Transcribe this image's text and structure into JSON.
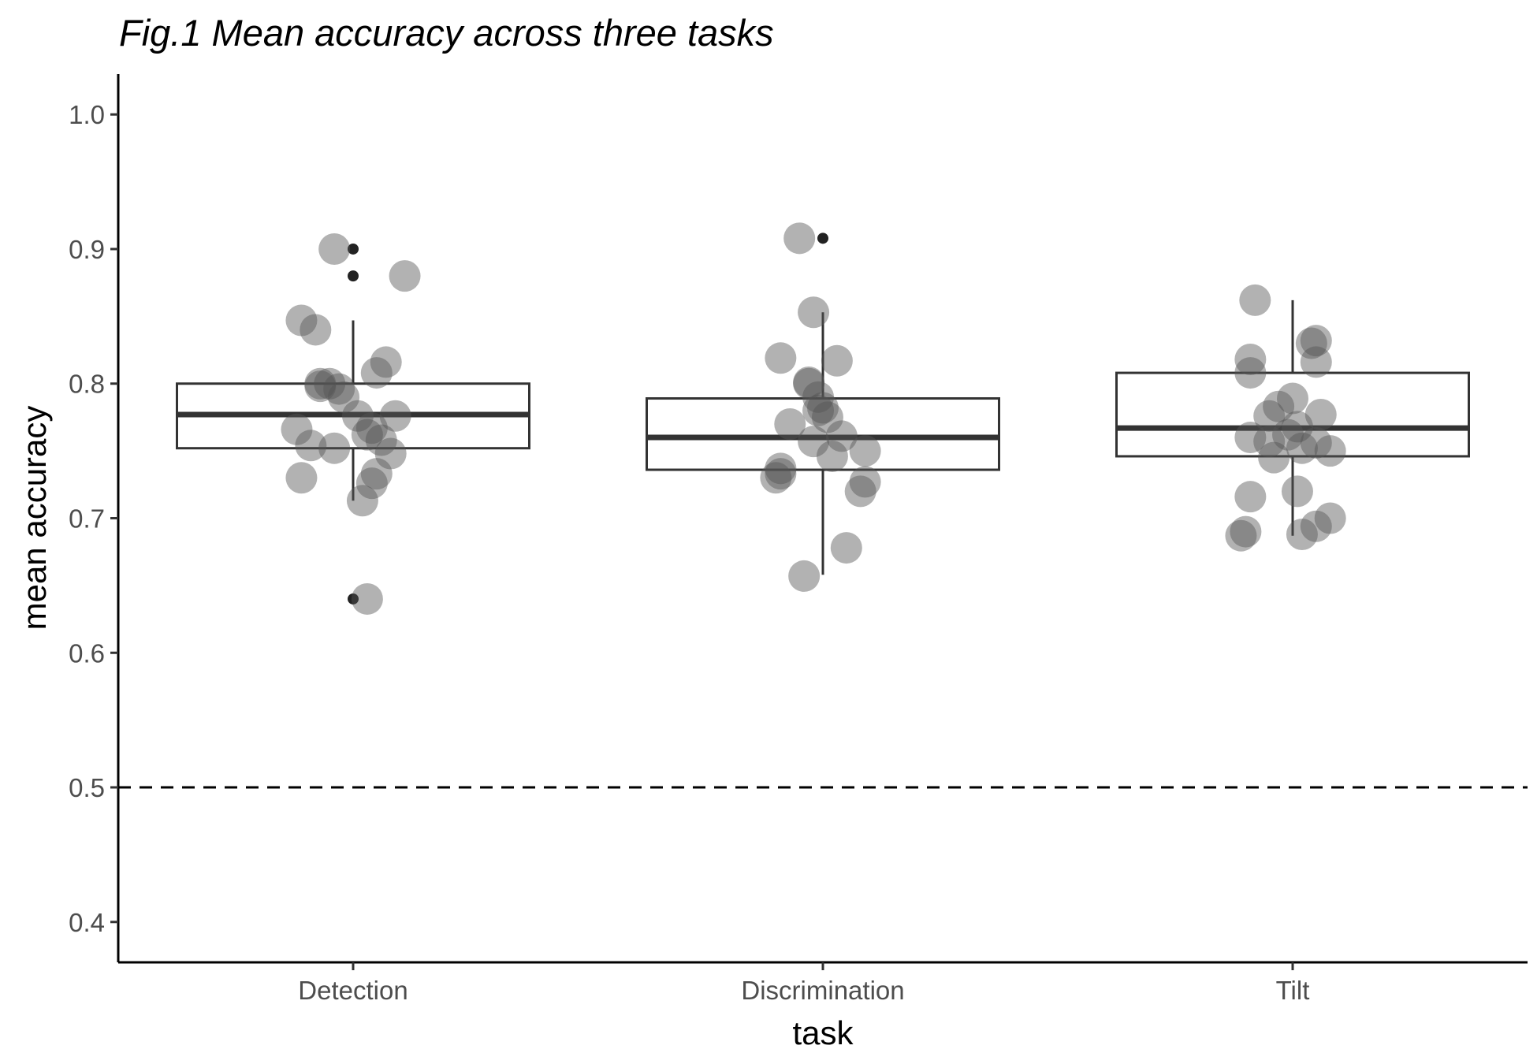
{
  "chart_data": {
    "type": "box",
    "title": "Fig.1 Mean accuracy across three tasks",
    "xlabel": "task",
    "ylabel": "mean accuracy",
    "categories": [
      "Detection",
      "Discrimination",
      "Tilt"
    ],
    "ylim": [
      0.37,
      1.03
    ],
    "yticks": [
      0.4,
      0.5,
      0.6,
      0.7,
      0.8,
      0.9,
      1.0
    ],
    "ytick_labels": [
      "0.4",
      "0.5",
      "0.6",
      "0.7",
      "0.8",
      "0.9",
      "1.0"
    ],
    "reference_line": {
      "y": 0.5,
      "style": "dashed"
    },
    "boxes": [
      {
        "category": "Detection",
        "lower_whisker": 0.713,
        "q1": 0.752,
        "median": 0.777,
        "q3": 0.8,
        "upper_whisker": 0.847,
        "outliers": [
          0.9,
          0.88,
          0.64
        ]
      },
      {
        "category": "Discrimination",
        "lower_whisker": 0.658,
        "q1": 0.736,
        "median": 0.76,
        "q3": 0.789,
        "upper_whisker": 0.853,
        "outliers": [
          0.908
        ]
      },
      {
        "category": "Tilt",
        "lower_whisker": 0.687,
        "q1": 0.746,
        "median": 0.767,
        "q3": 0.808,
        "upper_whisker": 0.862,
        "outliers": []
      }
    ],
    "points": [
      {
        "category": "Detection",
        "jitter": [
          -0.04,
          0.11,
          -0.11,
          -0.08,
          -0.07,
          -0.05,
          -0.07,
          -0.03,
          0.07,
          0.05,
          -0.02,
          -0.12,
          0.01,
          0.09,
          0.04,
          -0.09,
          0.03,
          -0.04,
          0.06,
          0.08,
          0.05,
          0.04,
          -0.11,
          0.02,
          0.03
        ],
        "values": [
          0.9,
          0.88,
          0.847,
          0.84,
          0.8,
          0.8,
          0.798,
          0.796,
          0.816,
          0.808,
          0.79,
          0.766,
          0.776,
          0.776,
          0.767,
          0.754,
          0.762,
          0.752,
          0.758,
          0.748,
          0.733,
          0.726,
          0.73,
          0.713,
          0.64
        ]
      },
      {
        "category": "Discrimination",
        "jitter": [
          -0.05,
          -0.02,
          -0.09,
          0.03,
          -0.03,
          -0.03,
          -0.01,
          0.0,
          -0.07,
          -0.01,
          0.01,
          0.04,
          -0.02,
          0.09,
          0.02,
          -0.09,
          -0.1,
          -0.09,
          0.09,
          0.08,
          0.05,
          -0.04
        ],
        "values": [
          0.908,
          0.853,
          0.819,
          0.817,
          0.8,
          0.801,
          0.79,
          0.782,
          0.77,
          0.78,
          0.775,
          0.761,
          0.757,
          0.75,
          0.746,
          0.737,
          0.73,
          0.733,
          0.727,
          0.72,
          0.678,
          0.657
        ]
      },
      {
        "category": "Tilt",
        "jitter": [
          -0.08,
          0.05,
          0.04,
          0.05,
          -0.09,
          -0.09,
          0.0,
          -0.03,
          0.06,
          -0.05,
          0.01,
          -0.09,
          -0.01,
          0.08,
          0.05,
          -0.04,
          -0.05,
          0.02,
          0.01,
          0.08,
          -0.09,
          0.05,
          0.02,
          -0.11,
          -0.1
        ],
        "values": [
          0.862,
          0.832,
          0.83,
          0.816,
          0.818,
          0.808,
          0.789,
          0.783,
          0.777,
          0.776,
          0.768,
          0.76,
          0.762,
          0.75,
          0.756,
          0.745,
          0.757,
          0.752,
          0.72,
          0.7,
          0.716,
          0.694,
          0.688,
          0.687,
          0.69
        ]
      }
    ],
    "grid": false,
    "legend": "none"
  }
}
